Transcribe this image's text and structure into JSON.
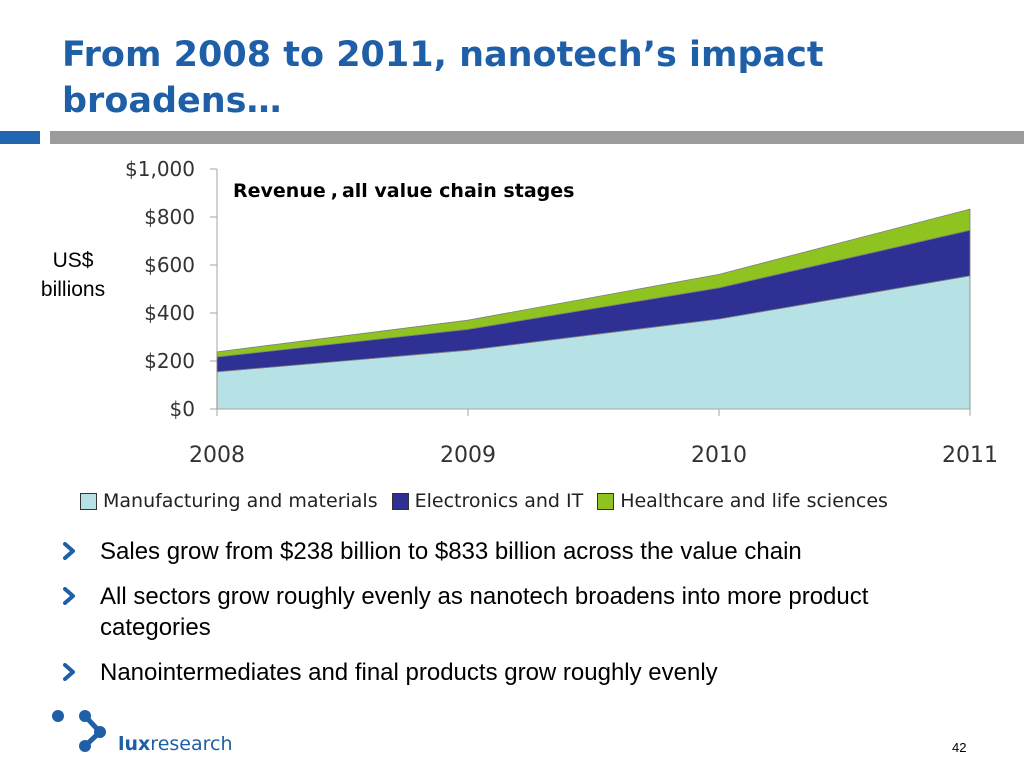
{
  "slide": {
    "title": "From 2008 to 2011, nanotech’s impact broadens…",
    "page_number": "42",
    "logo": {
      "bold": "lux",
      "regular": "research"
    }
  },
  "colors": {
    "title": "#1f5fa8",
    "accent": "#2066b0",
    "rule": "#9b9b9b",
    "manufacturing": "#b7e2e5",
    "electronics": "#2e3193",
    "healthcare": "#8fc31f"
  },
  "unit_label": {
    "line1": "US$",
    "line2": "billions"
  },
  "chart_data": {
    "type": "area",
    "stacked": true,
    "title_part1": "Revenue",
    "title_part2": "all value chain stages",
    "x": [
      "2008",
      "2009",
      "2010",
      "2011"
    ],
    "ylim": [
      0,
      1000
    ],
    "yticks": [
      0,
      200,
      400,
      600,
      800,
      1000
    ],
    "ytick_labels": [
      "$0",
      "$200",
      "$400",
      "$600",
      "$800",
      "$1,000"
    ],
    "ylabel": "US$ billions",
    "series": [
      {
        "name": "Manufacturing and materials",
        "values": [
          155,
          245,
          375,
          555
        ],
        "color": "#b7e2e5"
      },
      {
        "name": "Electronics and IT",
        "values": [
          62,
          87,
          130,
          190
        ],
        "color": "#2e3193"
      },
      {
        "name": "Healthcare and life sciences",
        "values": [
          21,
          38,
          56,
          88
        ],
        "color": "#8fc31f"
      }
    ],
    "legend": "bottom"
  },
  "bullets": [
    "Sales grow from $238 billion to $833 billion across the value chain",
    "All sectors grow roughly evenly as nanotech broadens into more product categories",
    "Nanointermediates and final products grow roughly evenly"
  ]
}
